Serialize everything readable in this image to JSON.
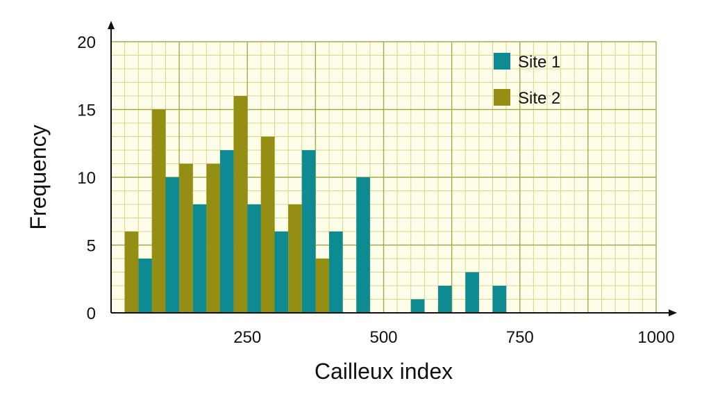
{
  "chart_data": {
    "type": "bar",
    "xlabel": "Cailleux index",
    "ylabel": "Frequency",
    "xlim": [
      0,
      1000
    ],
    "ylim": [
      0,
      20
    ],
    "x_ticks": [
      250,
      500,
      750,
      1000
    ],
    "y_ticks": [
      0,
      5,
      10,
      15,
      20
    ],
    "bin_width": 50,
    "grid": true,
    "legend_position": "top-right",
    "series": [
      {
        "name": "Site 1",
        "color": "#0e8a93",
        "points": [
          {
            "x": 50,
            "y": 4
          },
          {
            "x": 100,
            "y": 10
          },
          {
            "x": 150,
            "y": 8
          },
          {
            "x": 200,
            "y": 12
          },
          {
            "x": 250,
            "y": 8
          },
          {
            "x": 300,
            "y": 6
          },
          {
            "x": 350,
            "y": 12
          },
          {
            "x": 400,
            "y": 6
          },
          {
            "x": 450,
            "y": 10
          },
          {
            "x": 550,
            "y": 1
          },
          {
            "x": 600,
            "y": 2
          },
          {
            "x": 650,
            "y": 3
          },
          {
            "x": 700,
            "y": 2
          }
        ]
      },
      {
        "name": "Site 2",
        "color": "#948f14",
        "points": [
          {
            "x": 0,
            "y": 6
          },
          {
            "x": 50,
            "y": 15
          },
          {
            "x": 100,
            "y": 11
          },
          {
            "x": 150,
            "y": 11
          },
          {
            "x": 200,
            "y": 16
          },
          {
            "x": 250,
            "y": 13
          },
          {
            "x": 300,
            "y": 8
          },
          {
            "x": 350,
            "y": 4
          }
        ]
      }
    ],
    "grid_color_minor": "#d6d78a",
    "grid_color_major": "#a7a84a",
    "plot_background": "#fdfdea"
  }
}
